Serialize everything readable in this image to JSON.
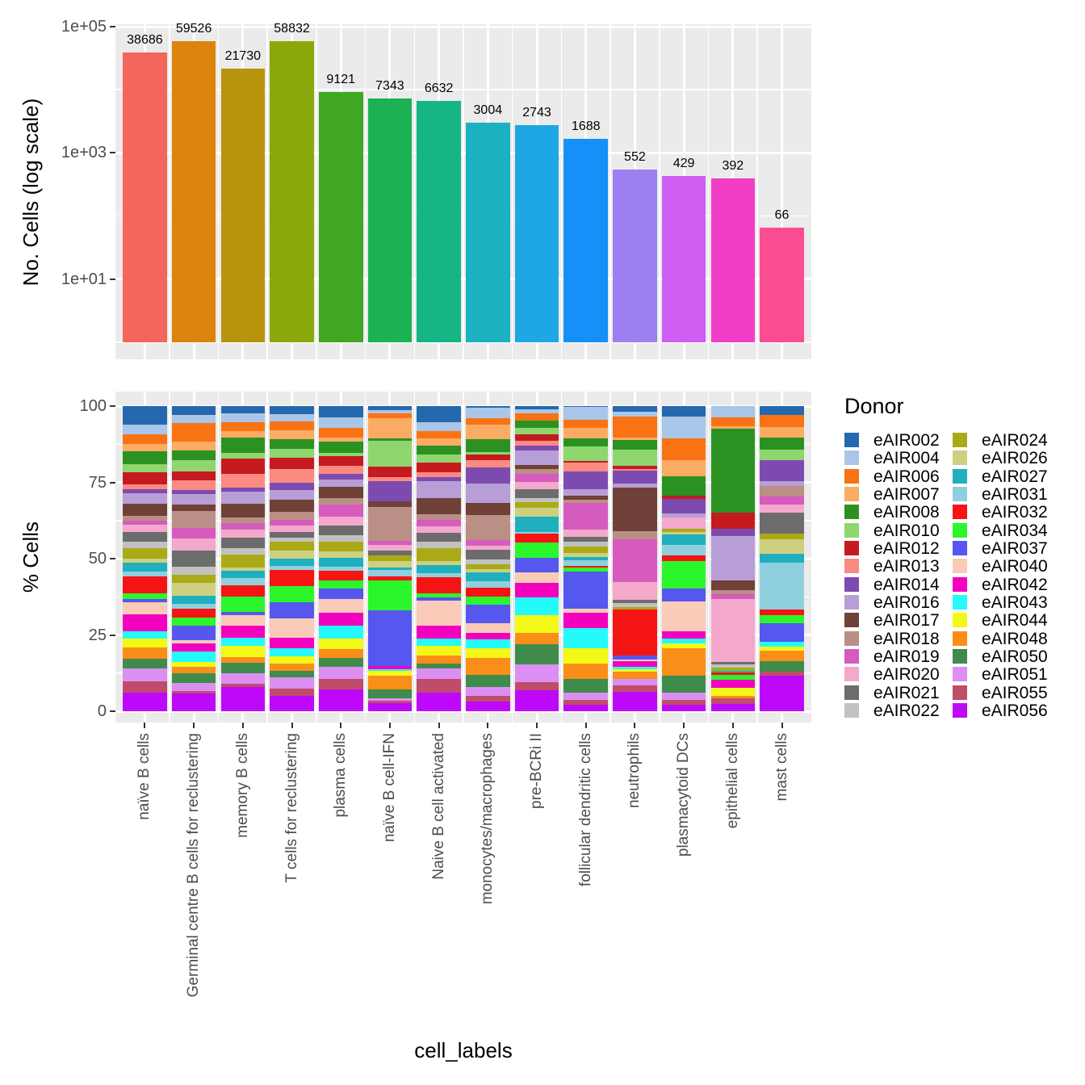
{
  "figure": {
    "background": "#FFFFFF",
    "panel_bg": "#EBEBEB",
    "grid_color": "#FFFFFF",
    "tick_color": "#333333",
    "tick_label_color": "#4D4D4D"
  },
  "legend": {
    "title": "Donor",
    "position": "right",
    "columns": 2
  },
  "chart_data": [
    {
      "type": "bar",
      "panel": "top",
      "ylabel": "No. Cells (log scale)",
      "y_scale": "log10",
      "ylim": [
        1,
        100000
      ],
      "ytick_labels": [
        "1e+05",
        "1e+03",
        "1e+01"
      ],
      "ytick_log_values": [
        5,
        3,
        1
      ],
      "minor_grid_log_values": [
        4,
        2,
        0
      ],
      "grid": true,
      "value_labels": true,
      "categories": [
        "naïve B cells",
        "Germinal centre B cells for reclustering",
        "memory B cells",
        "T cells for reclustering",
        "plasma cells",
        "naïve B cell-IFN",
        "Naive B cell activated",
        "monocytes/macrophages",
        "pre-BCRi II",
        "follicular dendritic cells",
        "neutrophils",
        "plasmacytoid DCs",
        "epithelial cells",
        "mast cells"
      ],
      "values": [
        38686,
        59526,
        21730,
        58832,
        9121,
        7343,
        6632,
        3004,
        2743,
        1688,
        552,
        429,
        392,
        66
      ],
      "bar_colors": [
        "#F4655C",
        "#DB830B",
        "#B8940C",
        "#8BA80B",
        "#3FA721",
        "#1CB253",
        "#16B585",
        "#1BB1BE",
        "#1FA7E4",
        "#1690F9",
        "#9C80F2",
        "#CE5FF2",
        "#F23EC6",
        "#FA4D92"
      ]
    },
    {
      "type": "stacked-bar",
      "panel": "bottom",
      "ylabel": "% Cells",
      "xlabel": "cell_labels",
      "unit": "percent",
      "ylim": [
        0,
        100
      ],
      "yticks": [
        100,
        75,
        50,
        25,
        0
      ],
      "grid": true,
      "legend_title": "Donor",
      "categories": [
        "naïve B cells",
        "Germinal centre B cells for reclustering",
        "memory B cells",
        "T cells for reclustering",
        "plasma cells",
        "naïve B cell-IFN",
        "Naive B cell activated",
        "monocytes/macrophages",
        "pre-BCRi II",
        "follicular dendritic cells",
        "neutrophils",
        "plasmacytoid DCs",
        "epithelial cells",
        "mast cells"
      ],
      "series": [
        {
          "name": "eAIR002",
          "color": "#2568AE",
          "values": [
            5.8,
            2.9,
            2.5,
            2.5,
            3.6,
            1.2,
            5.4,
            0.6,
            1.0,
            0.3,
            2.0,
            3.4,
            0.0,
            2.9
          ]
        },
        {
          "name": "eAIR004",
          "color": "#A9C6E8",
          "values": [
            3.1,
            2.7,
            2.7,
            2.2,
            3.5,
            1.3,
            2.8,
            3.4,
            1.5,
            4.2,
            1.6,
            7.1,
            3.8,
            0.0
          ]
        },
        {
          "name": "eAIR006",
          "color": "#F97314",
          "values": [
            3.2,
            6.2,
            3.1,
            2.7,
            3.3,
            1.5,
            2.5,
            2.0,
            2.2,
            2.7,
            6.8,
            7.1,
            2.7,
            4.0
          ]
        },
        {
          "name": "eAIR007",
          "color": "#FAAC63",
          "values": [
            2.2,
            2.7,
            2.2,
            2.7,
            1.3,
            6.5,
            2.4,
            4.8,
            0.0,
            3.5,
            0.9,
            5.3,
            0.9,
            3.5
          ]
        },
        {
          "name": "eAIR008",
          "color": "#2B9222",
          "values": [
            4.2,
            3.4,
            4.9,
            2.8,
            3.5,
            0.9,
            2.7,
            4.4,
            2.5,
            2.7,
            3.1,
            6.6,
            27.5,
            4.0
          ]
        },
        {
          "name": "eAIR010",
          "color": "#8FD66E",
          "values": [
            2.5,
            3.7,
            2.0,
            2.9,
            1.3,
            8.4,
            2.7,
            0.7,
            2.1,
            4.7,
            5.3,
            0.0,
            0.0,
            3.4
          ]
        },
        {
          "name": "eAIR012",
          "color": "#C51A20",
          "values": [
            3.9,
            2.7,
            5.0,
            3.3,
            3.1,
            3.5,
            3.1,
            1.9,
            2.0,
            0.5,
            1.1,
            0.9,
            5.3,
            0.0
          ]
        },
        {
          "name": "eAIR013",
          "color": "#FA8A82",
          "values": [
            1.5,
            3.4,
            4.4,
            4.2,
            2.5,
            1.3,
            1.8,
            2.3,
            1.8,
            3.0,
            0.6,
            0.0,
            0.0,
            0.0
          ]
        },
        {
          "name": "eAIR014",
          "color": "#7D4BAF",
          "values": [
            1.2,
            1.2,
            1.5,
            2.2,
            2.0,
            6.6,
            1.3,
            5.5,
            1.4,
            5.8,
            4.2,
            4.9,
            2.2,
            6.8
          ]
        },
        {
          "name": "eAIR016",
          "color": "#B89ED6",
          "values": [
            3.4,
            3.4,
            4.0,
            2.9,
            2.2,
            0.0,
            5.6,
            6.2,
            4.9,
            2.2,
            1.3,
            1.2,
            14.6,
            1.5
          ]
        },
        {
          "name": "eAIR017",
          "color": "#6F4138",
          "values": [
            3.9,
            2.2,
            4.4,
            3.7,
            3.8,
            1.8,
            5.3,
            4.2,
            1.3,
            1.2,
            14.6,
            0.0,
            3.1,
            0.0
          ]
        },
        {
          "name": "eAIR018",
          "color": "#BA8F86",
          "values": [
            1.5,
            5.6,
            1.8,
            2.5,
            2.1,
            11.1,
            1.8,
            8.1,
            1.6,
            1.1,
            2.7,
            0.0,
            1.3,
            3.4
          ]
        },
        {
          "name": "eAIR019",
          "color": "#D65BBF",
          "values": [
            1.2,
            3.3,
            2.2,
            1.8,
            4.1,
            1.5,
            2.0,
            1.9,
            2.8,
            8.9,
            14.0,
            0.0,
            1.6,
            2.8
          ]
        },
        {
          "name": "eAIR020",
          "color": "#F3A8CC",
          "values": [
            2.4,
            4.0,
            2.7,
            1.8,
            2.7,
            1.8,
            2.2,
            1.2,
            2.2,
            2.2,
            5.9,
            3.7,
            20.7,
            2.5
          ]
        },
        {
          "name": "eAIR021",
          "color": "#6C6C6C",
          "values": [
            3.0,
            5.3,
            3.5,
            1.8,
            3.3,
            1.4,
            2.9,
            3.3,
            2.9,
            1.8,
            1.3,
            0.0,
            0.9,
            7.1
          ]
        },
        {
          "name": "eAIR022",
          "color": "#C1C1C1",
          "values": [
            2.0,
            2.8,
            2.0,
            1.3,
            2.0,
            0.0,
            2.0,
            1.6,
            1.5,
            1.5,
            1.1,
            0.0,
            0.9,
            0.0
          ]
        },
        {
          "name": "eAIR024",
          "color": "#ABAA16",
          "values": [
            3.4,
            2.7,
            4.4,
            2.7,
            3.3,
            2.0,
            4.4,
            1.6,
            1.9,
            2.0,
            0.9,
            1.1,
            1.2,
            1.6
          ]
        },
        {
          "name": "eAIR026",
          "color": "#CDD07F",
          "values": [
            1.2,
            4.2,
            1.1,
            2.4,
            2.2,
            2.0,
            1.3,
            1.1,
            2.9,
            1.5,
            0.0,
            0.8,
            0.0,
            5.0
          ]
        },
        {
          "name": "eAIR027",
          "color": "#20AFBE",
          "values": [
            2.9,
            2.7,
            2.2,
            2.2,
            2.8,
            0.9,
            2.7,
            2.8,
            4.9,
            0.9,
            0.0,
            3.5,
            0.4,
            2.9
          ]
        },
        {
          "name": "eAIR031",
          "color": "#90D0DE",
          "values": [
            1.6,
            1.6,
            2.4,
            1.3,
            1.4,
            2.0,
            1.3,
            2.3,
            0.5,
            2.0,
            0.0,
            3.4,
            0.0,
            15.2
          ]
        },
        {
          "name": "eAIR032",
          "color": "#F51414",
          "values": [
            5.2,
            2.7,
            3.8,
            4.9,
            3.0,
            1.5,
            5.3,
            2.7,
            3.1,
            0.6,
            15.3,
            1.9,
            0.9,
            1.8
          ]
        },
        {
          "name": "eAIR034",
          "color": "#2BF62B",
          "values": [
            1.9,
            2.8,
            5.0,
            4.9,
            2.7,
            9.6,
            1.3,
            2.8,
            5.1,
            1.2,
            0.0,
            8.8,
            1.4,
            2.7
          ]
        },
        {
          "name": "eAIR037",
          "color": "#5557EF",
          "values": [
            1.1,
            4.6,
            1.2,
            4.9,
            3.4,
            18.4,
            0.9,
            6.0,
            4.6,
            12.4,
            1.3,
            4.4,
            0.0,
            6.2
          ]
        },
        {
          "name": "eAIR040",
          "color": "#F9CBB8",
          "values": [
            3.7,
            1.2,
            3.5,
            5.9,
            4.6,
            0.0,
            8.4,
            3.3,
            3.4,
            1.3,
            0.6,
            9.7,
            0.0,
            0.0
          ]
        },
        {
          "name": "eAIR042",
          "color": "#F202BE",
          "values": [
            5.4,
            2.7,
            3.8,
            3.0,
            4.2,
            1.1,
            4.2,
            2.0,
            5.0,
            4.9,
            1.8,
            2.5,
            2.7,
            0.0
          ]
        },
        {
          "name": "eAIR043",
          "color": "#25FAFA",
          "values": [
            2.4,
            3.3,
            2.7,
            2.5,
            4.2,
            0.5,
            2.4,
            3.0,
            5.8,
            6.6,
            0.9,
            1.5,
            0.0,
            1.6
          ]
        },
        {
          "name": "eAIR044",
          "color": "#F4F816",
          "values": [
            2.8,
            1.8,
            3.7,
            2.2,
            3.5,
            1.6,
            3.1,
            3.2,
            5.8,
            5.1,
            0.7,
            1.5,
            2.8,
            1.2
          ]
        },
        {
          "name": "eAIR048",
          "color": "#F98E18",
          "values": [
            3.5,
            2.0,
            2.0,
            2.2,
            2.8,
            4.4,
            2.7,
            5.5,
            3.8,
            5.0,
            2.4,
            9.1,
            0.7,
            3.5
          ]
        },
        {
          "name": "eAIR050",
          "color": "#3E8B4C",
          "values": [
            3.0,
            3.1,
            3.4,
            2.0,
            2.8,
            2.8,
            1.6,
            4.0,
            6.5,
            4.7,
            0.0,
            5.6,
            0.0,
            3.4
          ]
        },
        {
          "name": "eAIR051",
          "color": "#DC8FF2",
          "values": [
            4.3,
            2.7,
            3.5,
            3.4,
            4.1,
            0.9,
            3.5,
            3.1,
            6.0,
            2.4,
            2.2,
            2.4,
            0.0,
            0.0
          ]
        },
        {
          "name": "eAIR055",
          "color": "#C04C6B",
          "values": [
            3.5,
            0.8,
            1.0,
            2.2,
            3.3,
            0.7,
            4.4,
            1.9,
            2.5,
            1.5,
            2.2,
            1.5,
            1.9,
            1.3
          ]
        },
        {
          "name": "eAIR056",
          "color": "#BD08FA",
          "values": [
            5.8,
            5.8,
            8.0,
            4.7,
            7.2,
            2.7,
            6.0,
            3.0,
            6.9,
            2.1,
            6.3,
            2.1,
            2.3,
            11.6
          ]
        }
      ]
    }
  ]
}
